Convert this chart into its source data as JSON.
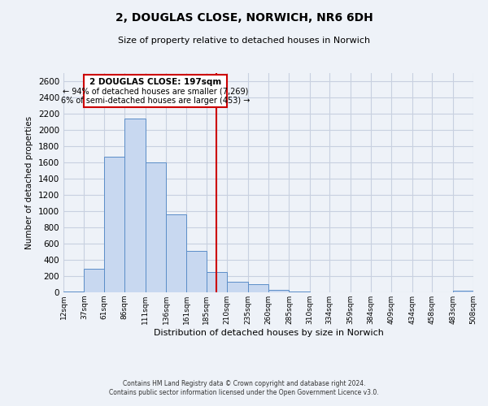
{
  "title": "2, DOUGLAS CLOSE, NORWICH, NR6 6DH",
  "subtitle": "Size of property relative to detached houses in Norwich",
  "xlabel": "Distribution of detached houses by size in Norwich",
  "ylabel": "Number of detached properties",
  "bin_edges": [
    12,
    37,
    61,
    86,
    111,
    136,
    161,
    185,
    210,
    235,
    260,
    285,
    310,
    334,
    359,
    384,
    409,
    434,
    458,
    483,
    508
  ],
  "bin_labels": [
    "12sqm",
    "37sqm",
    "61sqm",
    "86sqm",
    "111sqm",
    "136sqm",
    "161sqm",
    "185sqm",
    "210sqm",
    "235sqm",
    "260sqm",
    "285sqm",
    "310sqm",
    "334sqm",
    "359sqm",
    "384sqm",
    "409sqm",
    "434sqm",
    "458sqm",
    "483sqm",
    "508sqm"
  ],
  "counts": [
    15,
    295,
    1670,
    2140,
    1600,
    965,
    510,
    255,
    130,
    100,
    30,
    15,
    0,
    0,
    0,
    0,
    0,
    0,
    0,
    20
  ],
  "property_value": 197,
  "property_label": "2 DOUGLAS CLOSE: 197sqm",
  "pct_smaller": "94%",
  "n_smaller": "7,269",
  "pct_larger": "6%",
  "n_larger": "453",
  "vline_color": "#cc0000",
  "bar_face_color": "#c8d8f0",
  "bar_edge_color": "#5b8dc8",
  "box_edge_color": "#cc0000",
  "ylim": [
    0,
    2700
  ],
  "yticks": [
    0,
    200,
    400,
    600,
    800,
    1000,
    1200,
    1400,
    1600,
    1800,
    2000,
    2200,
    2400,
    2600
  ],
  "footer_line1": "Contains HM Land Registry data © Crown copyright and database right 2024.",
  "footer_line2": "Contains public sector information licensed under the Open Government Licence v3.0.",
  "grid_color": "#c8d0e0",
  "background_color": "#eef2f8"
}
